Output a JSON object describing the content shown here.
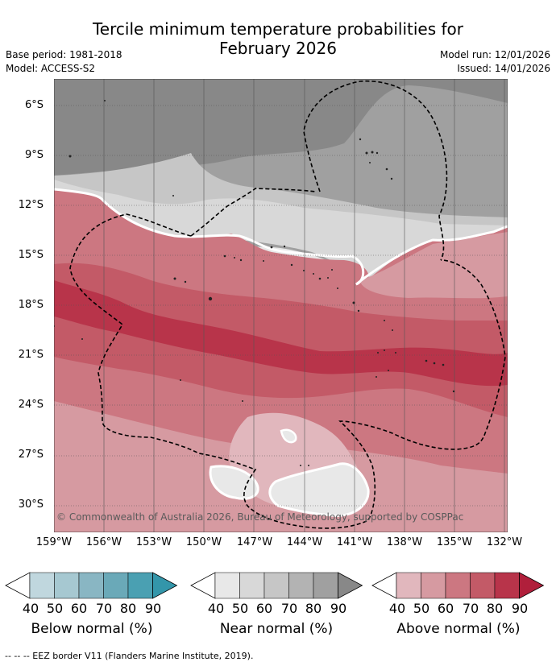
{
  "title": {
    "line1": "Tercile minimum temperature probabilities for",
    "line2": "February 2026"
  },
  "meta": {
    "base_period": "Base period: 1981-2018",
    "model": "Model: ACCESS-S2",
    "model_run": "Model run: 12/01/2026",
    "issued": "Issued: 14/01/2026"
  },
  "map": {
    "lat_labels": [
      "6°S",
      "9°S",
      "12°S",
      "15°S",
      "18°S",
      "21°S",
      "24°S",
      "27°S",
      "30°S"
    ],
    "lon_labels": [
      "159°W",
      "156°W",
      "153°W",
      "150°W",
      "147°W",
      "144°W",
      "141°W",
      "138°W",
      "135°W",
      "132°W"
    ],
    "copyright": "© Commonwealth of Australia 2026, Bureau of Meteorology, supported by COSPPac"
  },
  "colorbars": [
    {
      "title": "Below normal (%)",
      "ticks": [
        "40",
        "50",
        "60",
        "70",
        "80",
        "90"
      ],
      "colors": [
        "#ffffff",
        "#c0d7de",
        "#a6c8d1",
        "#89b6c3",
        "#6aa9b8",
        "#4aa0b2",
        "#3396aa"
      ]
    },
    {
      "title": "Near normal (%)",
      "ticks": [
        "40",
        "50",
        "60",
        "70",
        "80",
        "90"
      ],
      "colors": [
        "#ffffff",
        "#e8e8e8",
        "#d8d8d8",
        "#c6c6c6",
        "#b3b3b3",
        "#a0a0a0",
        "#888888"
      ]
    },
    {
      "title": "Above normal (%)",
      "ticks": [
        "40",
        "50",
        "60",
        "70",
        "80",
        "90"
      ],
      "colors": [
        "#ffffff",
        "#e1b7bd",
        "#d69aa1",
        "#cc7781",
        "#c35a67",
        "#b8344a",
        "#b01f3b"
      ]
    }
  ],
  "footer": "--  --  -- EEZ border V11 (Flanders Marine Institute, 2019).",
  "palette": {
    "near_90": "#888888",
    "near_80": "#a0a0a0",
    "near_60": "#c6c6c6",
    "near_50": "#d8d8d8",
    "near_40": "#e8e8e8",
    "above_40": "#e1b7bd",
    "above_50": "#d69aa1",
    "above_60": "#cc7781",
    "above_70": "#c35a67",
    "above_80": "#b8344a"
  }
}
